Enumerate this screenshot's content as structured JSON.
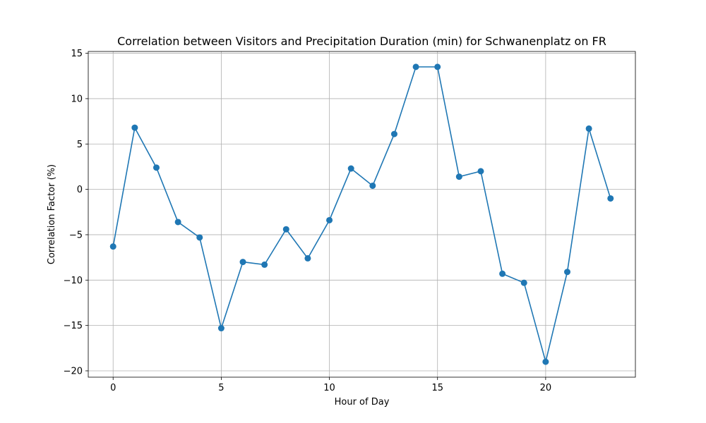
{
  "chart_data": {
    "type": "line",
    "title": "Correlation between Visitors and Precipitation Duration (min) for Schwanenplatz on FR",
    "xlabel": "Hour of Day",
    "ylabel": "Correlation Factor (%)",
    "xlim": [
      -1.15,
      24.15
    ],
    "ylim": [
      -20.7,
      15.2
    ],
    "xticks": [
      0,
      5,
      10,
      15,
      20
    ],
    "yticks": [
      -20,
      -15,
      -10,
      -5,
      0,
      5,
      10,
      15
    ],
    "grid": true,
    "series": [
      {
        "color": "#1f77b4",
        "marker": "circle",
        "x": [
          0,
          1,
          2,
          3,
          4,
          5,
          6,
          7,
          8,
          9,
          10,
          11,
          12,
          13,
          14,
          15,
          16,
          17,
          18,
          19,
          20,
          21,
          22,
          23
        ],
        "values": [
          -6.3,
          6.8,
          2.4,
          -3.6,
          -5.3,
          -15.3,
          -8.0,
          -8.3,
          -4.4,
          -7.6,
          -3.4,
          2.3,
          0.4,
          6.1,
          13.5,
          13.5,
          1.4,
          2.0,
          -9.3,
          -10.3,
          -19.0,
          -9.1,
          6.7,
          -1.0
        ]
      }
    ]
  }
}
